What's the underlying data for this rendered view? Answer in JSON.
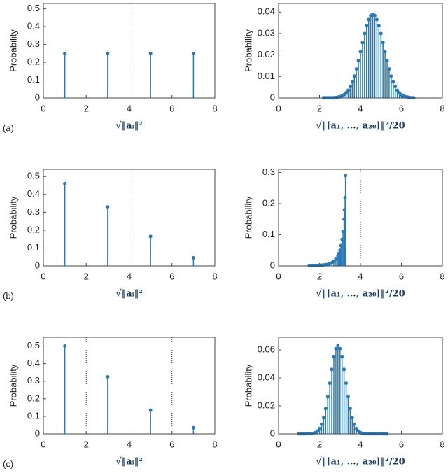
{
  "chart_data": [
    {
      "type": "stem",
      "label": "(a)",
      "ylabel": "Probability",
      "xlabel": "√‖aᵢ‖²",
      "color": "#2a7ab8",
      "x": [
        1,
        3,
        5,
        7
      ],
      "values": [
        0.25,
        0.25,
        0.25,
        0.25
      ],
      "xlim": [
        0,
        8
      ],
      "xticks": [
        0,
        2,
        4,
        6,
        8
      ],
      "ylim": [
        0,
        0.53
      ],
      "yticks": [
        0,
        0.1,
        0.2,
        0.3,
        0.4,
        0.5
      ],
      "vlines": [
        4
      ]
    },
    {
      "type": "stem",
      "ylabel": "Probability",
      "xlabel": "√‖[a₁, …, a₂₀]‖²/20",
      "color": "#2a7ab8",
      "x": [
        2.2,
        2.3,
        2.4,
        2.5,
        2.6,
        2.7,
        2.8,
        2.9,
        3.0,
        3.1,
        3.2,
        3.3,
        3.4,
        3.5,
        3.6,
        3.7,
        3.8,
        3.9,
        4.0,
        4.1,
        4.2,
        4.3,
        4.4,
        4.5,
        4.6,
        4.7,
        4.8,
        4.9,
        5.0,
        5.1,
        5.2,
        5.3,
        5.4,
        5.5,
        5.6,
        5.7,
        5.8,
        5.9,
        6.0,
        6.1,
        6.2,
        6.3,
        6.4,
        6.5,
        6.6
      ],
      "values": [
        0.0001,
        0.0001,
        0.0001,
        0.0001,
        0.0001,
        0.0001,
        0.0002,
        0.0004,
        0.0006,
        0.001,
        0.0015,
        0.0024,
        0.0036,
        0.0053,
        0.0075,
        0.0102,
        0.0135,
        0.0174,
        0.0215,
        0.0258,
        0.03,
        0.0336,
        0.0365,
        0.0384,
        0.039,
        0.0384,
        0.0365,
        0.0336,
        0.03,
        0.0258,
        0.0215,
        0.0174,
        0.0135,
        0.0102,
        0.0075,
        0.0053,
        0.0036,
        0.0024,
        0.0015,
        0.001,
        0.0006,
        0.0004,
        0.0002,
        0.0001,
        0.0001
      ],
      "xlim": [
        0,
        8
      ],
      "xticks": [
        0,
        2,
        4,
        6,
        8
      ],
      "ylim": [
        0,
        0.044
      ],
      "yticks": [
        0,
        0.01,
        0.02,
        0.03,
        0.04
      ]
    },
    {
      "type": "stem",
      "label": "(b)",
      "ylabel": "Probability",
      "xlabel": "√‖aᵢ‖²",
      "color": "#2a7ab8",
      "x": [
        1,
        3,
        5,
        7
      ],
      "values": [
        0.46,
        0.33,
        0.165,
        0.045
      ],
      "xlim": [
        0,
        8
      ],
      "xticks": [
        0,
        2,
        4,
        6,
        8
      ],
      "ylim": [
        0,
        0.54
      ],
      "yticks": [
        0,
        0.1,
        0.2,
        0.3,
        0.4,
        0.5
      ],
      "vlines": [
        4
      ]
    },
    {
      "type": "stem",
      "ylabel": "Probability",
      "xlabel": "√‖[a₁, …, a₂₀]‖²/20",
      "color": "#2a7ab8",
      "x": [
        1.5,
        1.6,
        1.7,
        1.8,
        1.9,
        2.0,
        2.1,
        2.2,
        2.3,
        2.4,
        2.5,
        2.6,
        2.7,
        2.8,
        2.9,
        2.95,
        3.0,
        3.05,
        3.1,
        3.15,
        3.2,
        3.22,
        3.25,
        3.27
      ],
      "values": [
        0.0005,
        0.0005,
        0.001,
        0.001,
        0.0015,
        0.002,
        0.0025,
        0.003,
        0.004,
        0.005,
        0.007,
        0.01,
        0.015,
        0.022,
        0.032,
        0.04,
        0.05,
        0.065,
        0.085,
        0.11,
        0.15,
        0.18,
        0.22,
        0.29
      ],
      "xlim": [
        0,
        8
      ],
      "xticks": [
        0,
        2,
        4,
        6,
        8
      ],
      "ylim": [
        0,
        0.31
      ],
      "yticks": [
        0,
        0.1,
        0.2,
        0.3
      ],
      "vlines": [
        4
      ]
    },
    {
      "type": "stem",
      "label": "(c)",
      "ylabel": "Probability",
      "xlabel": "√‖aᵢ‖²",
      "color": "#2a7ab8",
      "x": [
        1,
        3,
        5,
        7
      ],
      "values": [
        0.5,
        0.325,
        0.135,
        0.035
      ],
      "xlim": [
        0,
        8
      ],
      "xticks": [
        0,
        2,
        4,
        6,
        8
      ],
      "ylim": [
        0,
        0.55
      ],
      "yticks": [
        0,
        0.1,
        0.2,
        0.3,
        0.4,
        0.5
      ],
      "vlines": [
        2,
        6
      ]
    },
    {
      "type": "stem",
      "ylabel": "Probability",
      "xlabel": "√‖[a₁, …, a₂₀]‖²/20",
      "color": "#2a7ab8",
      "x": [
        1.0,
        1.1,
        1.2,
        1.3,
        1.4,
        1.5,
        1.6,
        1.7,
        1.8,
        1.9,
        2.0,
        2.1,
        2.2,
        2.3,
        2.4,
        2.5,
        2.6,
        2.7,
        2.8,
        2.9,
        3.0,
        3.1,
        3.2,
        3.3,
        3.4,
        3.5,
        3.6,
        3.7,
        3.8,
        3.9,
        4.0,
        4.1,
        4.2,
        4.3,
        4.4,
        4.5,
        4.6,
        4.7,
        4.8,
        4.9,
        5.0,
        5.1,
        5.2,
        5.3
      ],
      "values": [
        0.0001,
        0.0001,
        0.0001,
        0.0001,
        0.0001,
        0.0001,
        0.0002,
        0.0004,
        0.0009,
        0.002,
        0.0038,
        0.0069,
        0.0115,
        0.0181,
        0.0265,
        0.0362,
        0.0461,
        0.0549,
        0.0609,
        0.063,
        0.0609,
        0.0549,
        0.0461,
        0.0362,
        0.0265,
        0.0181,
        0.0115,
        0.0069,
        0.0038,
        0.002,
        0.0009,
        0.0004,
        0.0002,
        0.0001,
        0.0001,
        0.0001,
        0.0001,
        0.0001,
        0.0001,
        0.0001,
        0.0001,
        0.0001,
        0.0001,
        0.0001
      ],
      "xlim": [
        0,
        8
      ],
      "xticks": [
        0,
        2,
        4,
        6,
        8
      ],
      "ylim": [
        0,
        0.069
      ],
      "yticks": [
        0,
        0.02,
        0.04,
        0.06
      ]
    }
  ]
}
